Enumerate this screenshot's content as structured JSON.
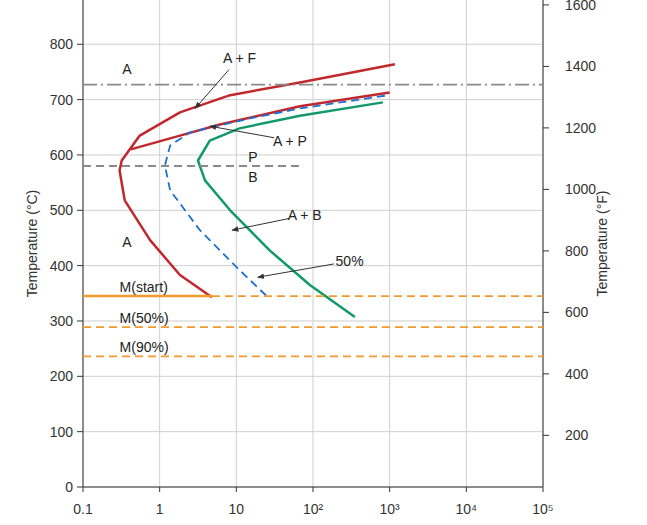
{
  "chart_data": {
    "type": "line",
    "ylabel": "Temperature (°C)",
    "y2label": "Temperature (°F)",
    "log": "x",
    "grid": true,
    "xlim": [
      0.1,
      100000
    ],
    "xticks": [
      0.1,
      1,
      10,
      {
        "value": 100,
        "label": "10²"
      },
      {
        "value": 1000,
        "label": "10³"
      },
      {
        "value": 10000,
        "label": "10⁴"
      },
      {
        "value": 100000,
        "label": "10⁵"
      }
    ],
    "ylim": [
      0,
      880
    ],
    "yticks": [
      0,
      100,
      200,
      300,
      400,
      500,
      600,
      700,
      800
    ],
    "y2lim": [
      32,
      1616
    ],
    "y2ticks": [
      200,
      400,
      600,
      800,
      1000,
      1200,
      1400,
      1600
    ],
    "series": [
      {
        "color": "#c0282d",
        "line_style": "solid",
        "x": [
          1170,
          67.5,
          8.3,
          1.84,
          0.55,
          0.32,
          0.3,
          0.35,
          0.75,
          1.84,
          4.8
        ],
        "values": [
          764,
          731,
          708,
          677,
          635,
          590,
          572,
          518,
          446,
          383,
          343
        ]
      },
      {
        "color": "#c0282d",
        "line_style": "solid",
        "x": [
          1000,
          67.5,
          6.1,
          1.84,
          0.42
        ],
        "values": [
          713,
          688,
          655,
          635,
          610
        ]
      },
      {
        "color": "#1e6fd0",
        "line_style": "dashed",
        "x": [
          865,
          67.5,
          15,
          2.5,
          1.37,
          1.17,
          1.37,
          3.35,
          11,
          25.8
        ],
        "values": [
          707,
          684,
          666,
          641,
          617,
          581,
          536,
          464,
          392,
          343
        ]
      },
      {
        "color": "#12996b",
        "line_style": "solid",
        "x": [
          815,
          67.5,
          11,
          4.5,
          3.16,
          3.9,
          8.3,
          27,
          91,
          352
        ],
        "values": [
          695,
          671,
          648,
          626,
          590,
          554,
          500,
          428,
          365,
          307
        ]
      },
      {
        "color": "#f39a2b",
        "line_style": "solid",
        "x": [
          0.1,
          4.8
        ],
        "values": [
          345,
          345
        ]
      },
      {
        "color": "#f39a2b",
        "line_style": "dashed",
        "x": [
          4.8,
          100000
        ],
        "values": [
          345,
          345
        ]
      },
      {
        "color": "#f39a2b",
        "line_style": "dashed",
        "x": [
          0.1,
          100000
        ],
        "values": [
          289,
          289
        ]
      },
      {
        "color": "#f39a2b",
        "line_style": "dashed",
        "x": [
          0.1,
          100000
        ],
        "values": [
          236,
          236
        ]
      },
      {
        "color": "#8a8a8a",
        "line_style": "dashdot",
        "x": [
          0.1,
          100000
        ],
        "values": [
          727,
          727
        ]
      },
      {
        "color": "#8a8a8a",
        "line_style": "dashed",
        "x": [
          0.1,
          67
        ],
        "values": [
          580,
          580
        ]
      }
    ],
    "annotations": [
      {
        "text": "A",
        "x": 0.375,
        "y": 756
      },
      {
        "text": "A + F",
        "x": 11,
        "y": 776,
        "arrow_x": 2.9,
        "arrow_y": 684
      },
      {
        "text": "A + P",
        "x": 50,
        "y": 626,
        "arrow_x": 4.5,
        "arrow_y": 652
      },
      {
        "text": "P",
        "x": 16.4,
        "y": 596
      },
      {
        "text": "B",
        "x": 16.4,
        "y": 560
      },
      {
        "text": "A + B",
        "x": 78,
        "y": 491,
        "arrow_x": 8.8,
        "arrow_y": 464
      },
      {
        "text": "50%",
        "x": 300,
        "y": 408,
        "arrow_x": 19,
        "arrow_y": 379
      },
      {
        "text": "A",
        "x": 0.375,
        "y": 442
      },
      {
        "text": "M(start)",
        "x": 0.3,
        "y": 361
      },
      {
        "text": "M(50%)",
        "x": 0.3,
        "y": 306
      },
      {
        "text": "M(90%)",
        "x": 0.3,
        "y": 253
      }
    ]
  }
}
